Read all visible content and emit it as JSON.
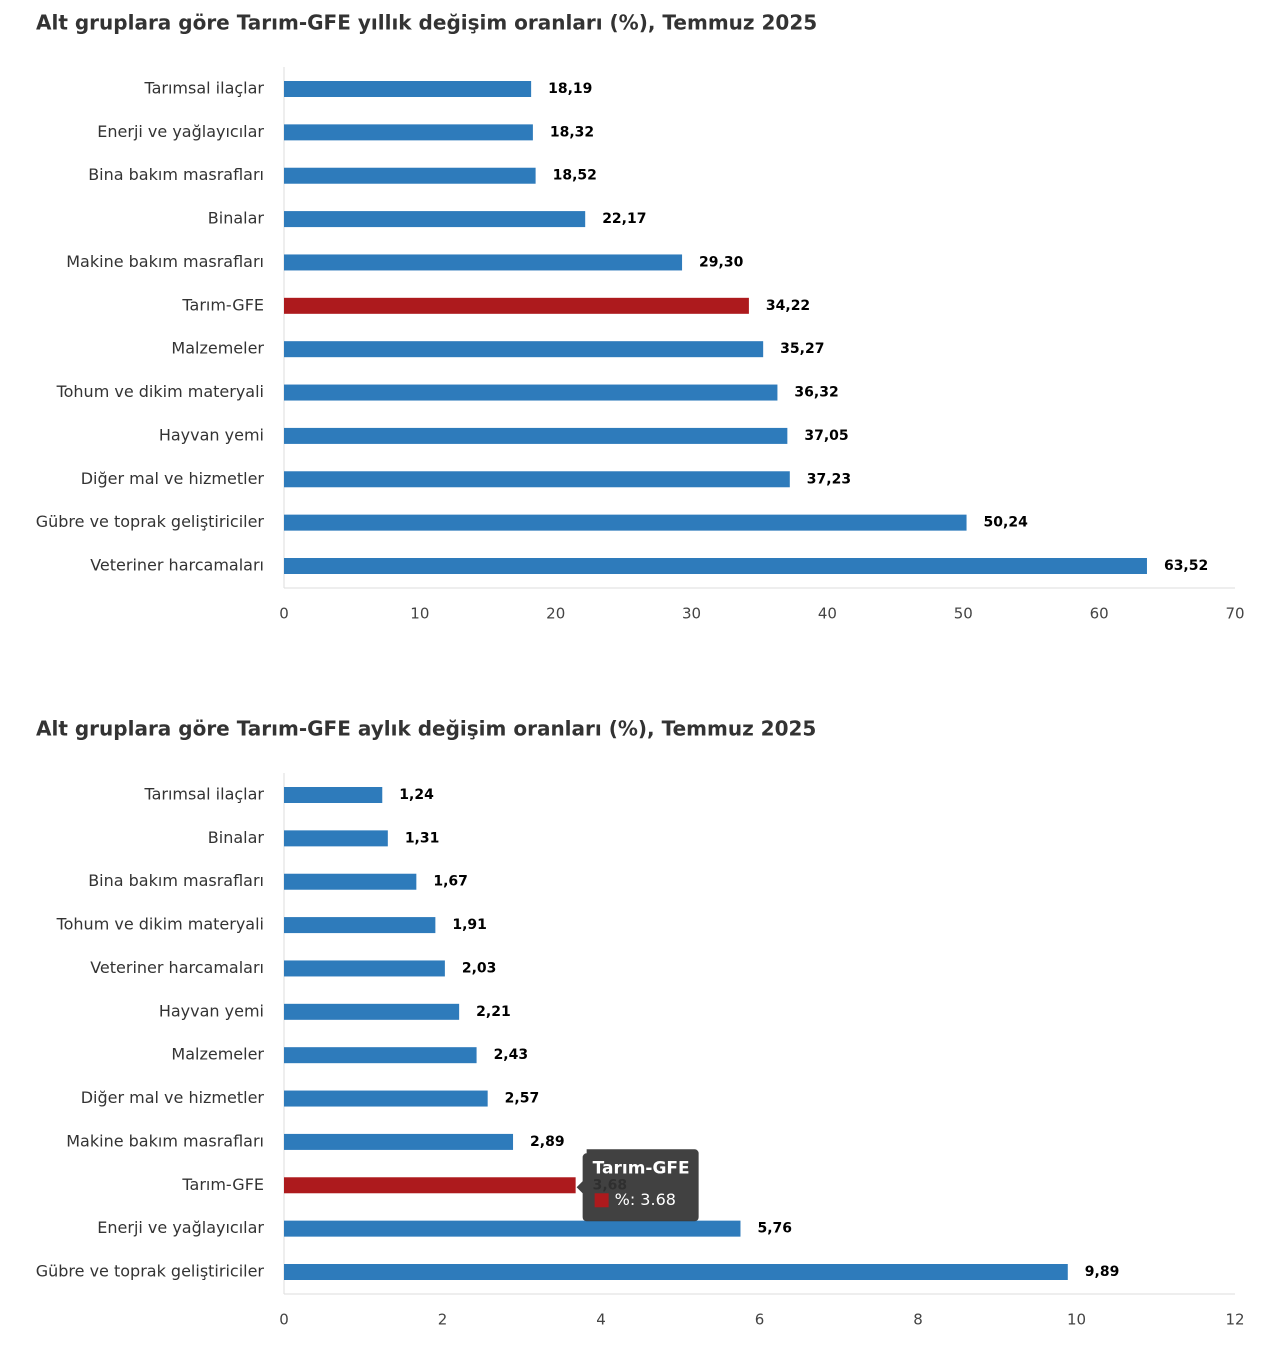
{
  "chart_data": [
    {
      "type": "bar",
      "orientation": "horizontal",
      "title": "Alt gruplara göre Tarım-GFE yıllık değişim oranları (%), Temmuz 2025",
      "categories": [
        "Tarımsal ilaçlar",
        "Enerji  ve yağlayıcılar",
        "Bina bakım masrafları",
        "Binalar",
        "Makine bakım masrafları",
        "Tarım-GFE",
        "Malzemeler",
        "Tohum ve dikim materyali",
        "Hayvan yemi",
        "Diğer mal ve hizmetler",
        "Gübre ve toprak geliştiriciler",
        "Veteriner harcamaları"
      ],
      "values": [
        18.19,
        18.32,
        18.52,
        22.17,
        29.3,
        34.22,
        35.27,
        36.32,
        37.05,
        37.23,
        50.24,
        63.52
      ],
      "value_labels": [
        "18,19",
        "18,32",
        "18,52",
        "22,17",
        "29,30",
        "34,22",
        "35,27",
        "36,32",
        "37,05",
        "37,23",
        "50,24",
        "63,52"
      ],
      "colors": [
        "#2e7bbb",
        "#2e7bbb",
        "#2e7bbb",
        "#2e7bbb",
        "#2e7bbb",
        "#ad1a1d",
        "#2e7bbb",
        "#2e7bbb",
        "#2e7bbb",
        "#2e7bbb",
        "#2e7bbb",
        "#2e7bbb"
      ],
      "xlim": [
        0,
        70
      ],
      "xticks": [
        0,
        10,
        20,
        30,
        40,
        50,
        60,
        70
      ]
    },
    {
      "type": "bar",
      "orientation": "horizontal",
      "title": "Alt gruplara göre Tarım-GFE aylık değişim oranları (%), Temmuz 2025",
      "categories": [
        "Tarımsal ilaçlar",
        "Binalar",
        "Bina bakım masrafları",
        "Tohum ve dikim materyali",
        "Veteriner harcamaları",
        "Hayvan yemi",
        "Malzemeler",
        "Diğer mal ve hizmetler",
        "Makine bakım masrafları",
        "Tarım-GFE",
        "Enerji  ve yağlayıcılar",
        "Gübre ve toprak geliştiriciler"
      ],
      "values": [
        1.24,
        1.31,
        1.67,
        1.91,
        2.03,
        2.21,
        2.43,
        2.57,
        2.89,
        3.68,
        5.76,
        9.89
      ],
      "value_labels": [
        "1,24",
        "1,31",
        "1,67",
        "1,91",
        "2,03",
        "2,21",
        "2,43",
        "2,57",
        "2,89",
        "3,68",
        "5,76",
        "9,89"
      ],
      "colors": [
        "#2e7bbb",
        "#2e7bbb",
        "#2e7bbb",
        "#2e7bbb",
        "#2e7bbb",
        "#2e7bbb",
        "#2e7bbb",
        "#2e7bbb",
        "#2e7bbb",
        "#ad1a1d",
        "#2e7bbb",
        "#2e7bbb"
      ],
      "xlim": [
        0,
        12
      ],
      "xticks": [
        0,
        2,
        4,
        6,
        8,
        10,
        12
      ],
      "tooltip": {
        "index": 9,
        "title": "Tarım-GFE",
        "label": "%: 3.68"
      }
    }
  ]
}
